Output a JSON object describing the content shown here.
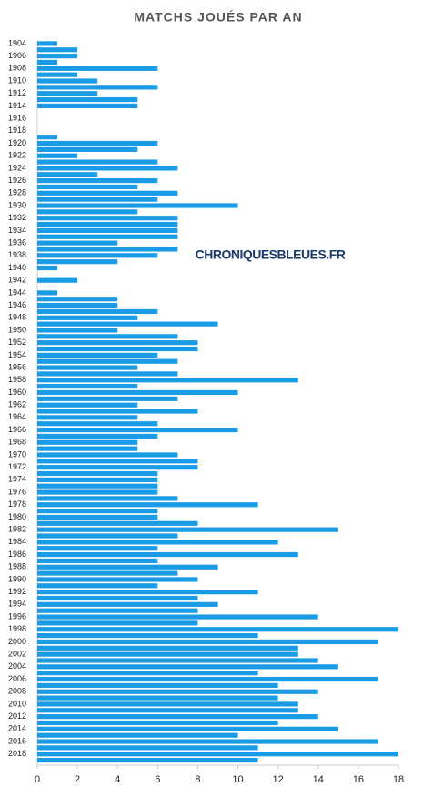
{
  "chart_data": {
    "type": "bar",
    "orientation": "horizontal",
    "title": "MATCHS JOUÉS PAR AN",
    "watermark": "CHRONIQUESBLEUES.FR",
    "categories": [
      "1904",
      null,
      "1906",
      null,
      "1908",
      null,
      "1910",
      null,
      "1912",
      null,
      "1914",
      null,
      "1916",
      null,
      "1918",
      null,
      "1920",
      null,
      "1922",
      null,
      "1924",
      null,
      "1926",
      null,
      "1928",
      null,
      "1930",
      null,
      "1932",
      null,
      "1934",
      null,
      "1936",
      null,
      "1938",
      null,
      "1940",
      null,
      "1942",
      null,
      "1944",
      null,
      "1946",
      null,
      "1948",
      null,
      "1950",
      null,
      "1952",
      null,
      "1954",
      null,
      "1956",
      null,
      "1958",
      null,
      "1960",
      null,
      "1962",
      null,
      "1964",
      null,
      "1966",
      null,
      "1968",
      null,
      "1970",
      null,
      "1972",
      null,
      "1974",
      null,
      "1976",
      null,
      "1978",
      null,
      "1980",
      null,
      "1982",
      null,
      "1984",
      null,
      "1986",
      null,
      "1988",
      null,
      "1990",
      null,
      "1992",
      null,
      "1994",
      null,
      "1996",
      null,
      "1998",
      null,
      "2000",
      null,
      "2002",
      null,
      "2004",
      null,
      "2006",
      null,
      "2008",
      null,
      "2010",
      null,
      "2012",
      null,
      "2014",
      null,
      "2016",
      null,
      "2018",
      null
    ],
    "values": [
      1,
      2,
      2,
      1,
      6,
      2,
      3,
      6,
      3,
      5,
      5,
      0,
      0,
      0,
      0,
      1,
      6,
      5,
      2,
      6,
      7,
      3,
      6,
      5,
      7,
      6,
      10,
      5,
      7,
      7,
      7,
      7,
      4,
      7,
      6,
      4,
      1,
      0,
      2,
      0,
      1,
      4,
      4,
      6,
      5,
      9,
      4,
      7,
      8,
      8,
      6,
      7,
      5,
      7,
      13,
      5,
      10,
      7,
      5,
      8,
      5,
      6,
      10,
      6,
      5,
      5,
      7,
      8,
      8,
      6,
      6,
      6,
      6,
      7,
      11,
      6,
      6,
      8,
      15,
      7,
      12,
      6,
      13,
      6,
      9,
      7,
      8,
      6,
      11,
      8,
      9,
      8,
      14,
      8,
      18,
      11,
      17,
      13,
      13,
      14,
      15,
      11,
      17,
      12,
      14,
      12,
      13,
      13,
      14,
      12,
      15,
      10,
      17,
      11,
      18,
      11
    ],
    "color": "#1a9be6",
    "xlim": [
      0,
      18
    ],
    "xticks": [
      0,
      2,
      4,
      6,
      8,
      10,
      12,
      14,
      16,
      18
    ],
    "grid": false
  }
}
